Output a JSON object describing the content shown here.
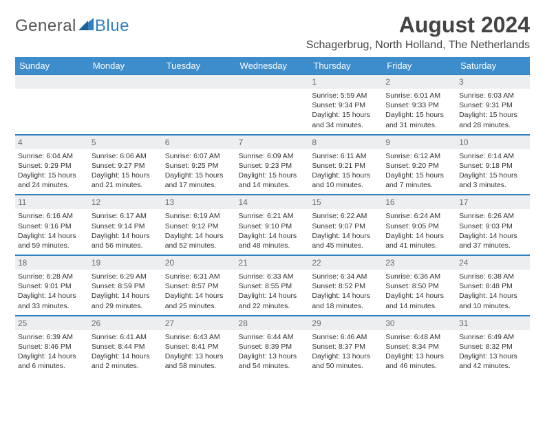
{
  "logo": {
    "text_general": "General",
    "text_blue": "Blue"
  },
  "header": {
    "title": "August 2024",
    "location": "Schagerbrug, North Holland, The Netherlands"
  },
  "colors": {
    "header_bg": "#3d8ccc",
    "header_fg": "#ffffff",
    "daynum_bg": "#eceef0",
    "daynum_fg": "#6a6c6e",
    "rule": "#2f7fc1",
    "text": "#333333",
    "background": "#ffffff"
  },
  "typography": {
    "title_fontsize": 32,
    "location_fontsize": 16,
    "header_fontsize": 13,
    "cell_fontsize": 10.5,
    "font_family": "Arial"
  },
  "calendar": {
    "day_headers": [
      "Sunday",
      "Monday",
      "Tuesday",
      "Wednesday",
      "Thursday",
      "Friday",
      "Saturday"
    ],
    "weeks": [
      [
        {
          "blank": true
        },
        {
          "blank": true
        },
        {
          "blank": true
        },
        {
          "blank": true
        },
        {
          "day": "1",
          "sunrise": "Sunrise: 5:59 AM",
          "sunset": "Sunset: 9:34 PM",
          "daylight": "Daylight: 15 hours and 34 minutes."
        },
        {
          "day": "2",
          "sunrise": "Sunrise: 6:01 AM",
          "sunset": "Sunset: 9:33 PM",
          "daylight": "Daylight: 15 hours and 31 minutes."
        },
        {
          "day": "3",
          "sunrise": "Sunrise: 6:03 AM",
          "sunset": "Sunset: 9:31 PM",
          "daylight": "Daylight: 15 hours and 28 minutes."
        }
      ],
      [
        {
          "day": "4",
          "sunrise": "Sunrise: 6:04 AM",
          "sunset": "Sunset: 9:29 PM",
          "daylight": "Daylight: 15 hours and 24 minutes."
        },
        {
          "day": "5",
          "sunrise": "Sunrise: 6:06 AM",
          "sunset": "Sunset: 9:27 PM",
          "daylight": "Daylight: 15 hours and 21 minutes."
        },
        {
          "day": "6",
          "sunrise": "Sunrise: 6:07 AM",
          "sunset": "Sunset: 9:25 PM",
          "daylight": "Daylight: 15 hours and 17 minutes."
        },
        {
          "day": "7",
          "sunrise": "Sunrise: 6:09 AM",
          "sunset": "Sunset: 9:23 PM",
          "daylight": "Daylight: 15 hours and 14 minutes."
        },
        {
          "day": "8",
          "sunrise": "Sunrise: 6:11 AM",
          "sunset": "Sunset: 9:21 PM",
          "daylight": "Daylight: 15 hours and 10 minutes."
        },
        {
          "day": "9",
          "sunrise": "Sunrise: 6:12 AM",
          "sunset": "Sunset: 9:20 PM",
          "daylight": "Daylight: 15 hours and 7 minutes."
        },
        {
          "day": "10",
          "sunrise": "Sunrise: 6:14 AM",
          "sunset": "Sunset: 9:18 PM",
          "daylight": "Daylight: 15 hours and 3 minutes."
        }
      ],
      [
        {
          "day": "11",
          "sunrise": "Sunrise: 6:16 AM",
          "sunset": "Sunset: 9:16 PM",
          "daylight": "Daylight: 14 hours and 59 minutes."
        },
        {
          "day": "12",
          "sunrise": "Sunrise: 6:17 AM",
          "sunset": "Sunset: 9:14 PM",
          "daylight": "Daylight: 14 hours and 56 minutes."
        },
        {
          "day": "13",
          "sunrise": "Sunrise: 6:19 AM",
          "sunset": "Sunset: 9:12 PM",
          "daylight": "Daylight: 14 hours and 52 minutes."
        },
        {
          "day": "14",
          "sunrise": "Sunrise: 6:21 AM",
          "sunset": "Sunset: 9:10 PM",
          "daylight": "Daylight: 14 hours and 48 minutes."
        },
        {
          "day": "15",
          "sunrise": "Sunrise: 6:22 AM",
          "sunset": "Sunset: 9:07 PM",
          "daylight": "Daylight: 14 hours and 45 minutes."
        },
        {
          "day": "16",
          "sunrise": "Sunrise: 6:24 AM",
          "sunset": "Sunset: 9:05 PM",
          "daylight": "Daylight: 14 hours and 41 minutes."
        },
        {
          "day": "17",
          "sunrise": "Sunrise: 6:26 AM",
          "sunset": "Sunset: 9:03 PM",
          "daylight": "Daylight: 14 hours and 37 minutes."
        }
      ],
      [
        {
          "day": "18",
          "sunrise": "Sunrise: 6:28 AM",
          "sunset": "Sunset: 9:01 PM",
          "daylight": "Daylight: 14 hours and 33 minutes."
        },
        {
          "day": "19",
          "sunrise": "Sunrise: 6:29 AM",
          "sunset": "Sunset: 8:59 PM",
          "daylight": "Daylight: 14 hours and 29 minutes."
        },
        {
          "day": "20",
          "sunrise": "Sunrise: 6:31 AM",
          "sunset": "Sunset: 8:57 PM",
          "daylight": "Daylight: 14 hours and 25 minutes."
        },
        {
          "day": "21",
          "sunrise": "Sunrise: 6:33 AM",
          "sunset": "Sunset: 8:55 PM",
          "daylight": "Daylight: 14 hours and 22 minutes."
        },
        {
          "day": "22",
          "sunrise": "Sunrise: 6:34 AM",
          "sunset": "Sunset: 8:52 PM",
          "daylight": "Daylight: 14 hours and 18 minutes."
        },
        {
          "day": "23",
          "sunrise": "Sunrise: 6:36 AM",
          "sunset": "Sunset: 8:50 PM",
          "daylight": "Daylight: 14 hours and 14 minutes."
        },
        {
          "day": "24",
          "sunrise": "Sunrise: 6:38 AM",
          "sunset": "Sunset: 8:48 PM",
          "daylight": "Daylight: 14 hours and 10 minutes."
        }
      ],
      [
        {
          "day": "25",
          "sunrise": "Sunrise: 6:39 AM",
          "sunset": "Sunset: 8:46 PM",
          "daylight": "Daylight: 14 hours and 6 minutes."
        },
        {
          "day": "26",
          "sunrise": "Sunrise: 6:41 AM",
          "sunset": "Sunset: 8:44 PM",
          "daylight": "Daylight: 14 hours and 2 minutes."
        },
        {
          "day": "27",
          "sunrise": "Sunrise: 6:43 AM",
          "sunset": "Sunset: 8:41 PM",
          "daylight": "Daylight: 13 hours and 58 minutes."
        },
        {
          "day": "28",
          "sunrise": "Sunrise: 6:44 AM",
          "sunset": "Sunset: 8:39 PM",
          "daylight": "Daylight: 13 hours and 54 minutes."
        },
        {
          "day": "29",
          "sunrise": "Sunrise: 6:46 AM",
          "sunset": "Sunset: 8:37 PM",
          "daylight": "Daylight: 13 hours and 50 minutes."
        },
        {
          "day": "30",
          "sunrise": "Sunrise: 6:48 AM",
          "sunset": "Sunset: 8:34 PM",
          "daylight": "Daylight: 13 hours and 46 minutes."
        },
        {
          "day": "31",
          "sunrise": "Sunrise: 6:49 AM",
          "sunset": "Sunset: 8:32 PM",
          "daylight": "Daylight: 13 hours and 42 minutes."
        }
      ]
    ]
  }
}
